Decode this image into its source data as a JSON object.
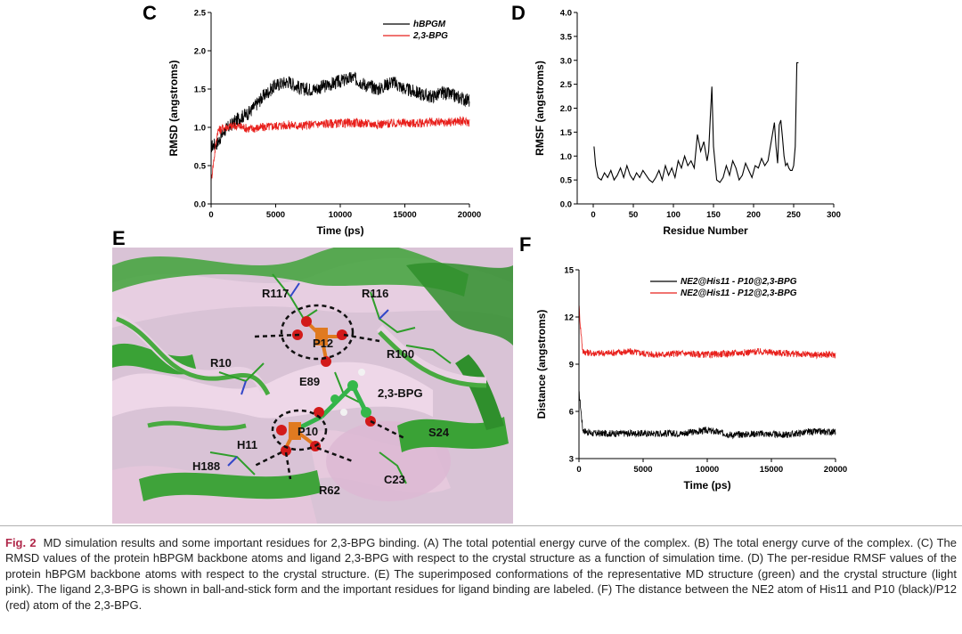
{
  "panels": {
    "C": "C",
    "D": "D",
    "E": "E",
    "F": "F"
  },
  "chart_data": [
    {
      "panel": "C",
      "type": "line",
      "xlabel": "Time (ps)",
      "ylabel": "RMSD (angstroms)",
      "xlim": [
        0,
        20000
      ],
      "ylim": [
        0.0,
        2.5
      ],
      "xticks": [
        "0",
        "5000",
        "10000",
        "15000",
        "20000"
      ],
      "yticks": [
        "0.0",
        "0.5",
        "1.0",
        "1.5",
        "2.0",
        "2.5"
      ],
      "legend_position": "top-right",
      "series": [
        {
          "name": "hBPGM",
          "color": "#000000",
          "x": [
            0,
            500,
            1000,
            2000,
            3000,
            4000,
            5000,
            6000,
            7000,
            8000,
            9000,
            10000,
            11000,
            12000,
            13000,
            14000,
            15000,
            16000,
            17000,
            18000,
            19000,
            20000
          ],
          "y": [
            0.75,
            0.8,
            0.95,
            1.1,
            1.2,
            1.4,
            1.55,
            1.6,
            1.5,
            1.5,
            1.55,
            1.6,
            1.65,
            1.55,
            1.5,
            1.6,
            1.5,
            1.45,
            1.4,
            1.45,
            1.4,
            1.35
          ]
        },
        {
          "name": "2,3-BPG",
          "color": "#e8201c",
          "x": [
            0,
            500,
            1000,
            2000,
            3000,
            4000,
            5000,
            6000,
            7000,
            8000,
            9000,
            10000,
            11000,
            12000,
            13000,
            14000,
            15000,
            16000,
            17000,
            18000,
            19000,
            20000
          ],
          "y": [
            0.3,
            0.95,
            1.0,
            1.02,
            0.98,
            1.0,
            1.02,
            1.03,
            1.02,
            1.04,
            1.05,
            1.05,
            1.06,
            1.05,
            1.04,
            1.05,
            1.06,
            1.05,
            1.07,
            1.06,
            1.08,
            1.07
          ]
        }
      ]
    },
    {
      "panel": "D",
      "type": "line",
      "xlabel": "Residue Number",
      "ylabel": "RMSF (angstroms)",
      "xlim": [
        -20,
        300
      ],
      "ylim": [
        0.0,
        4.0
      ],
      "xticks": [
        "0",
        "50",
        "100",
        "150",
        "200",
        "250",
        "300"
      ],
      "yticks": [
        "0.0",
        "0.5",
        "1.0",
        "1.5",
        "2.0",
        "2.5",
        "3.0",
        "3.5",
        "4.0"
      ],
      "series": [
        {
          "name": "RMSF",
          "color": "#000000",
          "x": [
            1,
            3,
            6,
            10,
            14,
            18,
            22,
            26,
            30,
            34,
            38,
            42,
            46,
            50,
            54,
            58,
            62,
            66,
            70,
            74,
            78,
            82,
            86,
            90,
            94,
            98,
            102,
            106,
            110,
            114,
            118,
            122,
            126,
            130,
            134,
            138,
            142,
            144,
            146,
            148,
            150,
            154,
            158,
            162,
            166,
            170,
            174,
            178,
            182,
            186,
            190,
            194,
            198,
            202,
            206,
            210,
            214,
            218,
            222,
            226,
            228,
            230,
            232,
            234,
            236,
            238,
            240,
            242,
            244,
            246,
            248,
            250,
            252,
            254,
            256
          ],
          "y": [
            1.2,
            0.8,
            0.55,
            0.5,
            0.65,
            0.55,
            0.7,
            0.5,
            0.6,
            0.75,
            0.55,
            0.8,
            0.6,
            0.5,
            0.65,
            0.55,
            0.7,
            0.6,
            0.5,
            0.45,
            0.55,
            0.7,
            0.5,
            0.8,
            0.6,
            0.75,
            0.55,
            0.9,
            0.75,
            1.0,
            0.8,
            0.9,
            0.75,
            1.45,
            1.1,
            1.3,
            0.9,
            1.1,
            1.8,
            2.45,
            1.2,
            0.5,
            0.45,
            0.55,
            0.8,
            0.6,
            0.9,
            0.75,
            0.5,
            0.6,
            0.85,
            0.7,
            0.55,
            0.8,
            0.75,
            0.95,
            0.8,
            0.9,
            1.3,
            1.7,
            1.2,
            0.85,
            1.65,
            1.75,
            1.4,
            1.0,
            0.8,
            0.85,
            0.75,
            0.7,
            0.7,
            0.8,
            1.2,
            2.95,
            2.95
          ]
        }
      ]
    },
    {
      "panel": "F",
      "type": "line",
      "xlabel": "Time (ps)",
      "ylabel": "Distance (angstroms)",
      "xlim": [
        0,
        20000
      ],
      "ylim": [
        3,
        15
      ],
      "xticks": [
        "0",
        "5000",
        "10000",
        "15000",
        "20000"
      ],
      "yticks": [
        "3",
        "6",
        "9",
        "12",
        "15"
      ],
      "legend_position": "top-right",
      "series": [
        {
          "name": "NE2@His11 - P10@2,3-BPG",
          "color": "#000000",
          "x": [
            0,
            100,
            300,
            1000,
            2000,
            4000,
            6000,
            8000,
            10000,
            12000,
            14000,
            16000,
            18000,
            20000
          ],
          "y": [
            7.2,
            6.5,
            4.8,
            4.6,
            4.6,
            4.6,
            4.6,
            4.6,
            4.8,
            4.5,
            4.6,
            4.5,
            4.7,
            4.7
          ]
        },
        {
          "name": "NE2@His11 - P12@2,3-BPG",
          "color": "#e8201c",
          "x": [
            0,
            100,
            300,
            1000,
            2000,
            4000,
            6000,
            8000,
            10000,
            12000,
            14000,
            16000,
            18000,
            20000
          ],
          "y": [
            12.8,
            11.5,
            9.8,
            9.7,
            9.7,
            9.8,
            9.6,
            9.7,
            9.6,
            9.7,
            9.8,
            9.7,
            9.6,
            9.6
          ]
        }
      ]
    }
  ],
  "structure_labels": {
    "R117": "R117",
    "R116": "R116",
    "P12": "P12",
    "R10": "R10",
    "R100": "R100",
    "E89": "E89",
    "BPG": "2,3-BPG",
    "P10": "P10",
    "H11": "H11",
    "S24": "S24",
    "H188": "H188",
    "C23": "C23",
    "R62": "R62"
  },
  "caption": {
    "figure_label": "Fig. 2",
    "text": "MD simulation results and some important residues for 2,3-BPG binding. (A) The total potential energy curve of the complex. (B) The total energy curve of the complex. (C) The RMSD values of the protein hBPGM backbone atoms and ligand 2,3-BPG with respect to the crystal structure as a function of simulation time. (D) The per-residue RMSF values of the protein hBPGM backbone atoms with respect to the crystal structure. (E) The superimposed conformations of the representative MD structure (green) and the crystal structure (light pink). The ligand 2,3-BPG is shown in ball-and-stick form and the important residues for ligand binding are labeled. (F) The distance between the NE2 atom of His11 and P10 (black)/P12 (red) atom of the 2,3-BPG."
  }
}
